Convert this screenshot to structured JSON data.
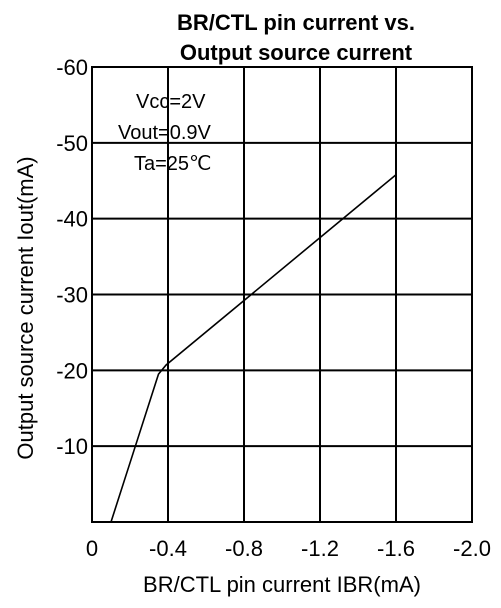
{
  "chart_data": {
    "type": "line",
    "title_lines": [
      "BR/CTL pin current vs.",
      "Output source current"
    ],
    "xlabel": "BR/CTL pin current IBR(mA)",
    "ylabel": "Output source current Iout(mA)",
    "x_ticks": [
      "0",
      "-0.4",
      "-0.8",
      "-1.2",
      "-1.6",
      "-2.0"
    ],
    "x_tick_values": [
      0,
      -0.4,
      -0.8,
      -1.2,
      -1.6,
      -2.0
    ],
    "y_ticks": [
      "-10",
      "-20",
      "-30",
      "-40",
      "-50",
      "-60"
    ],
    "y_tick_values": [
      -10,
      -20,
      -30,
      -40,
      -50,
      -60
    ],
    "xlim": [
      0,
      -2.0
    ],
    "ylim": [
      0,
      -60
    ],
    "grid": true,
    "annotations": [
      "Vcc=2V",
      "Vout=0.9V",
      "Ta=25℃"
    ],
    "series": [
      {
        "x": [
          -0.1,
          -0.35,
          -0.39,
          -1.6
        ],
        "y": [
          0,
          -19.5,
          -20.7,
          -45.8
        ]
      }
    ]
  }
}
